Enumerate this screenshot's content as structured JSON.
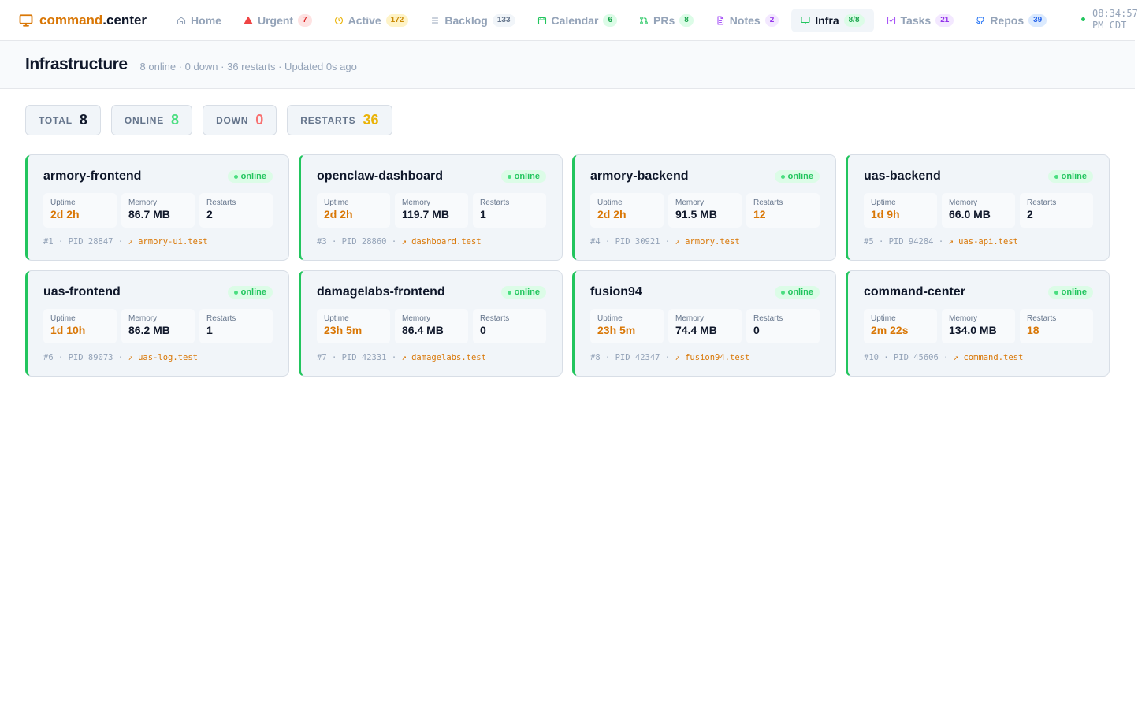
{
  "brand": {
    "part1": "command",
    "part2": ".center"
  },
  "nav": [
    {
      "id": "home",
      "label": "Home",
      "icon": "home-icon",
      "badge": null,
      "badge_class": "",
      "active": false
    },
    {
      "id": "urgent",
      "label": "Urgent",
      "icon": "warning-icon",
      "badge": "7",
      "badge_class": "b-red",
      "active": false
    },
    {
      "id": "active",
      "label": "Active",
      "icon": "clock-icon",
      "badge": "172",
      "badge_class": "b-yel",
      "active": false
    },
    {
      "id": "backlog",
      "label": "Backlog",
      "icon": "list-icon",
      "badge": "133",
      "badge_class": "b-gray",
      "active": false
    },
    {
      "id": "calendar",
      "label": "Calendar",
      "icon": "calendar-icon",
      "badge": "6",
      "badge_class": "b-grn",
      "active": false
    },
    {
      "id": "prs",
      "label": "PRs",
      "icon": "pull-request-icon",
      "badge": "8",
      "badge_class": "b-grn",
      "active": false
    },
    {
      "id": "notes",
      "label": "Notes",
      "icon": "file-icon",
      "badge": "2",
      "badge_class": "b-pur",
      "active": false
    },
    {
      "id": "infra",
      "label": "Infra",
      "icon": "monitor-icon",
      "badge": "8/8",
      "badge_class": "b-grn",
      "active": true
    },
    {
      "id": "tasks",
      "label": "Tasks",
      "icon": "checkbox-icon",
      "badge": "21",
      "badge_class": "b-pur",
      "active": false
    },
    {
      "id": "repos",
      "label": "Repos",
      "icon": "github-icon",
      "badge": "39",
      "badge_class": "b-blu",
      "active": false
    }
  ],
  "clock": {
    "line1": "08:34:57",
    "line2": "PM CDT"
  },
  "header": {
    "title": "Infrastructure",
    "subtitle": "8 online · 0 down · 36 restarts · Updated 0s ago"
  },
  "stats": [
    {
      "label": "TOTAL",
      "value": "8",
      "color": "#0f172a"
    },
    {
      "label": "ONLINE",
      "value": "8",
      "color": "#4ade80"
    },
    {
      "label": "DOWN",
      "value": "0",
      "color": "#f87171"
    },
    {
      "label": "RESTARTS",
      "value": "36",
      "color": "#eab308"
    }
  ],
  "labels": {
    "uptime": "Uptime",
    "memory": "Memory",
    "restarts": "Restarts"
  },
  "services": [
    {
      "name": "armory-frontend",
      "status": "online",
      "uptime": "2d 2h",
      "memory": "86.7 MB",
      "restarts": "2",
      "restarts_warn": false,
      "meta": "#1 · PID 28847 · ",
      "link": "↗ armory-ui.test"
    },
    {
      "name": "openclaw-dashboard",
      "status": "online",
      "uptime": "2d 2h",
      "memory": "119.7 MB",
      "restarts": "1",
      "restarts_warn": false,
      "meta": "#3 · PID 28860 · ",
      "link": "↗ dashboard.test"
    },
    {
      "name": "armory-backend",
      "status": "online",
      "uptime": "2d 2h",
      "memory": "91.5 MB",
      "restarts": "12",
      "restarts_warn": true,
      "meta": "#4 · PID 30921 · ",
      "link": "↗ armory.test"
    },
    {
      "name": "uas-backend",
      "status": "online",
      "uptime": "1d 9h",
      "memory": "66.0 MB",
      "restarts": "2",
      "restarts_warn": false,
      "meta": "#5 · PID 94284 · ",
      "link": "↗ uas-api.test"
    },
    {
      "name": "uas-frontend",
      "status": "online",
      "uptime": "1d 10h",
      "memory": "86.2 MB",
      "restarts": "1",
      "restarts_warn": false,
      "meta": "#6 · PID 89073 · ",
      "link": "↗ uas-log.test"
    },
    {
      "name": "damagelabs-frontend",
      "status": "online",
      "uptime": "23h 5m",
      "memory": "86.4 MB",
      "restarts": "0",
      "restarts_warn": false,
      "meta": "#7 · PID 42331 · ",
      "link": "↗ damagelabs.test"
    },
    {
      "name": "fusion94",
      "status": "online",
      "uptime": "23h 5m",
      "memory": "74.4 MB",
      "restarts": "0",
      "restarts_warn": false,
      "meta": "#8 · PID 42347 · ",
      "link": "↗ fusion94.test"
    },
    {
      "name": "command-center",
      "status": "online",
      "uptime": "2m 22s",
      "memory": "134.0 MB",
      "restarts": "18",
      "restarts_warn": true,
      "meta": "#10 · PID 45606 · ",
      "link": "↗ command.test"
    }
  ]
}
